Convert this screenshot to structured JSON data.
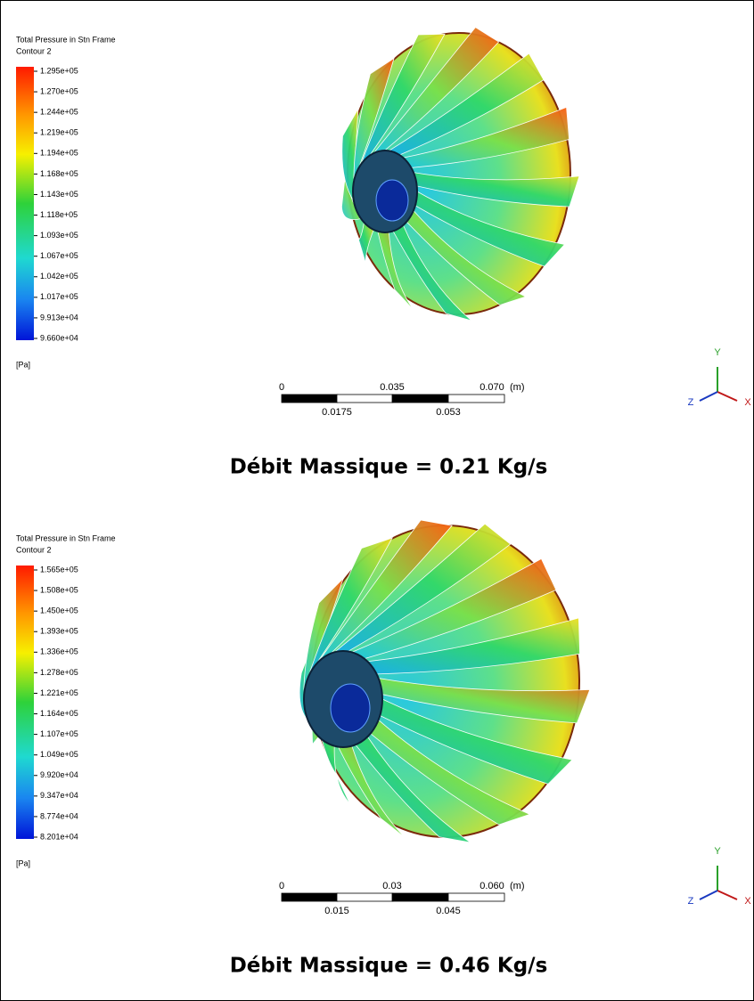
{
  "panels": [
    {
      "legend": {
        "title": "Total Pressure in Stn Frame",
        "subtitle": "Contour 2",
        "labels": [
          "1.295e+05",
          "1.270e+05",
          "1.244e+05",
          "1.219e+05",
          "1.194e+05",
          "1.168e+05",
          "1.143e+05",
          "1.118e+05",
          "1.093e+05",
          "1.067e+05",
          "1.042e+05",
          "1.017e+05",
          "9.913e+04",
          "9.660e+04"
        ],
        "unit": "[Pa]"
      },
      "scale_bar": {
        "top": [
          "0",
          "0.035",
          "0.070"
        ],
        "unit": "(m)",
        "bottom": [
          "0.0175",
          "0.053"
        ]
      },
      "axes": {
        "y": "Y",
        "z": "Z",
        "x": "X"
      },
      "caption": "Débit Massique = 0.21 Kg/s"
    },
    {
      "legend": {
        "title": "Total Pressure in Stn Frame",
        "subtitle": "Contour 2",
        "labels": [
          "1.565e+05",
          "1.508e+05",
          "1.450e+05",
          "1.393e+05",
          "1.336e+05",
          "1.278e+05",
          "1.221e+05",
          "1.164e+05",
          "1.107e+05",
          "1.049e+05",
          "9.920e+04",
          "9.347e+04",
          "8.774e+04",
          "8.201e+04"
        ],
        "unit": "[Pa]"
      },
      "scale_bar": {
        "top": [
          "0",
          "0.03",
          "0.060"
        ],
        "unit": "(m)",
        "bottom": [
          "0.015",
          "0.045"
        ]
      },
      "axes": {
        "y": "Y",
        "z": "Z",
        "x": "X"
      },
      "caption": "Débit Massique = 0.46 Kg/s"
    }
  ]
}
